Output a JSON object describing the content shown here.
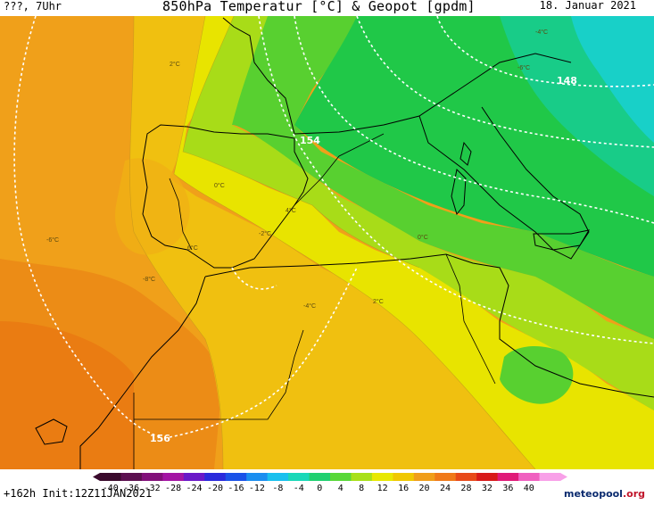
{
  "header": {
    "left": "???, 7Uhr",
    "title": "850hPa Temperatur [°C] & Geopot [gpdm]",
    "date": "18. Januar 2021"
  },
  "map": {
    "geopot_labels": [
      "154",
      "148",
      "156"
    ],
    "temp_labels": [
      "2°C",
      "0°C",
      "-2°C",
      "-4°C",
      "-6°C",
      "-8°C",
      "6°C",
      "4°C",
      "-6°C",
      "-4°C",
      "0°C",
      "2°C"
    ]
  },
  "scale": {
    "ticks": [
      "-40",
      "-36",
      "-32",
      "-28",
      "-24",
      "-20",
      "-16",
      "-12",
      "-8",
      "-4",
      "0",
      "4",
      "8",
      "12",
      "16",
      "20",
      "24",
      "28",
      "32",
      "36",
      "40"
    ],
    "colors": [
      "#3a0a2c",
      "#5c1050",
      "#82107a",
      "#a414a4",
      "#6a18c8",
      "#2a2adc",
      "#1a52e8",
      "#1a8ef0",
      "#18c0ee",
      "#18d8b8",
      "#20d070",
      "#58d838",
      "#a8e018",
      "#e8e800",
      "#f0c800",
      "#f09e1a",
      "#f07a1a",
      "#e84a1a",
      "#d81a1a",
      "#e01a78",
      "#f060c0",
      "#f8a0e8"
    ]
  },
  "footer": {
    "init": "+162h  Init:12Z11JAN2021",
    "logo_main": "meteopool",
    "logo_tld": ".org"
  }
}
